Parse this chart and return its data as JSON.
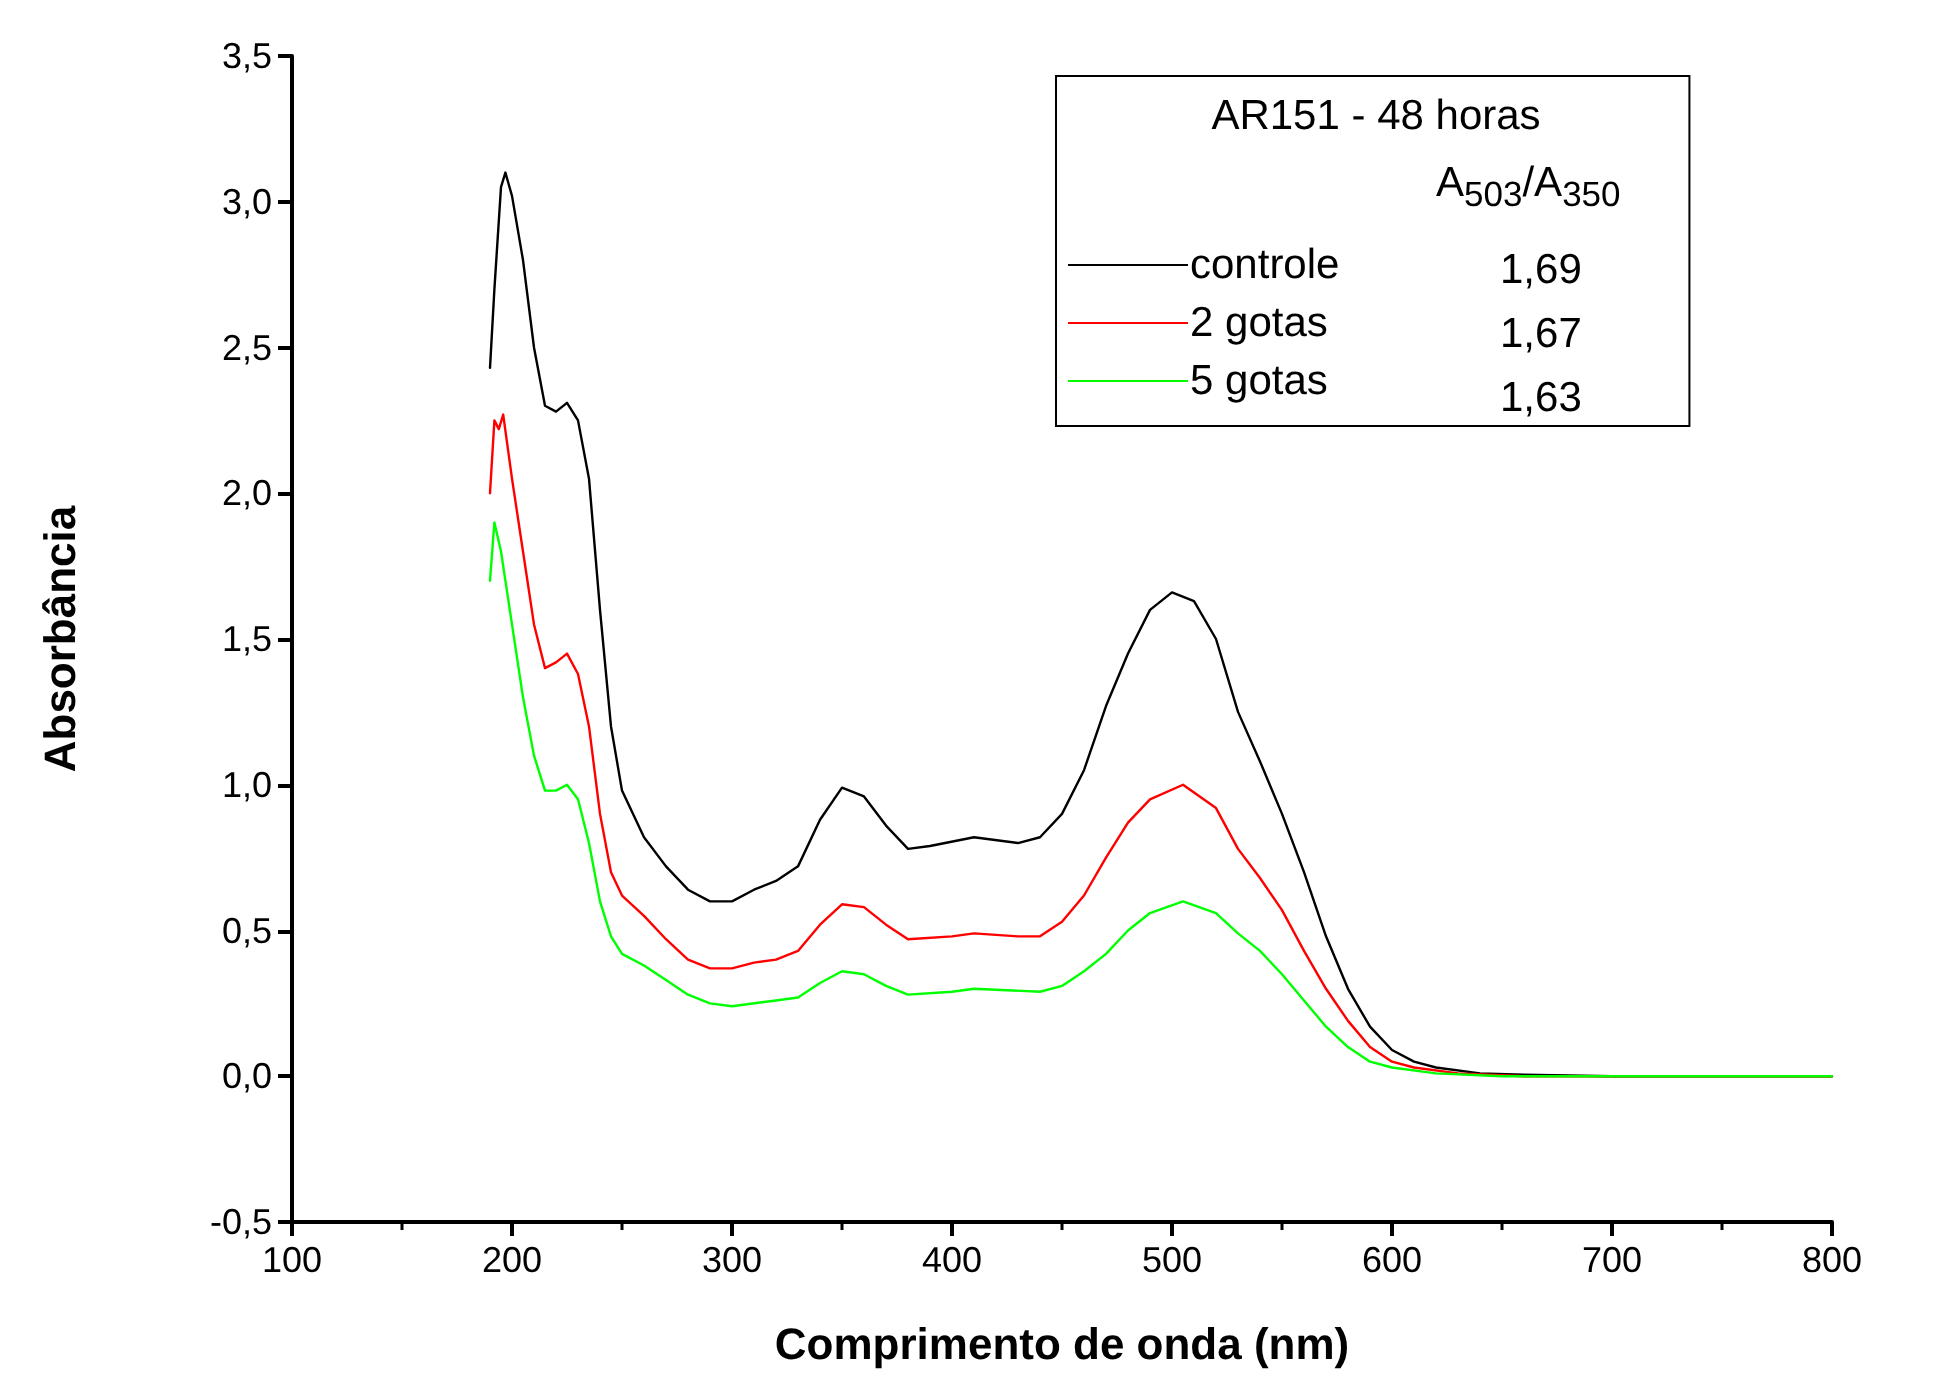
{
  "chart_data": {
    "type": "line",
    "xlabel": "Comprimento de onda (nm)",
    "ylabel": "Absorbância",
    "legend_title": "AR151 - 48 horas",
    "annotations": [
      "A$_{503}$/A$_{350}$",
      "1,69",
      "1,67",
      "1,63"
    ],
    "xlim": [
      100,
      800
    ],
    "xticks": [
      100,
      200,
      300,
      400,
      500,
      600,
      700,
      800
    ],
    "ylim": [
      -0.5,
      3.5
    ],
    "yticks": [
      {
        "value": -0.5,
        "label": "-0,5"
      },
      {
        "value": 0,
        "label": "0,0"
      },
      {
        "value": 0.5,
        "label": "0,5"
      },
      {
        "value": 1,
        "label": "1,0"
      },
      {
        "value": 1.5,
        "label": "1,5"
      },
      {
        "value": 2,
        "label": "2,0"
      },
      {
        "value": 2.5,
        "label": "2,5"
      },
      {
        "value": 3,
        "label": "3,0"
      },
      {
        "value": 3.5,
        "label": "3,5"
      }
    ],
    "grid": false,
    "legend": "top right",
    "marker": "none",
    "line_style": "solid",
    "series": [
      {
        "name": "controle",
        "color": "#000000",
        "x": [
          190,
          192,
          195,
          197,
          200,
          205,
          210,
          215,
          220,
          225,
          230,
          235,
          240,
          245,
          250,
          260,
          270,
          280,
          290,
          300,
          310,
          320,
          330,
          340,
          350,
          360,
          370,
          380,
          390,
          410,
          430,
          440,
          450,
          460,
          470,
          480,
          490,
          500,
          510,
          520,
          530,
          540,
          550,
          560,
          570,
          580,
          590,
          600,
          610,
          620,
          640,
          660,
          700,
          800
        ],
        "values": [
          2.43,
          2.7,
          3.05,
          3.1,
          3.02,
          2.8,
          2.5,
          2.3,
          2.28,
          2.31,
          2.25,
          2.05,
          1.6,
          1.2,
          0.98,
          0.82,
          0.72,
          0.64,
          0.6,
          0.6,
          0.64,
          0.67,
          0.72,
          0.88,
          0.99,
          0.96,
          0.86,
          0.78,
          0.79,
          0.82,
          0.8,
          0.82,
          0.9,
          1.05,
          1.27,
          1.45,
          1.6,
          1.66,
          1.63,
          1.5,
          1.25,
          1.08,
          0.9,
          0.7,
          0.48,
          0.3,
          0.17,
          0.09,
          0.05,
          0.03,
          0.01,
          0.005,
          0,
          0
        ]
      },
      {
        "name": "2 gotas",
        "color": "#ff0000",
        "x": [
          190,
          192,
          194,
          196,
          200,
          205,
          210,
          215,
          220,
          225,
          230,
          235,
          240,
          245,
          250,
          260,
          270,
          280,
          290,
          300,
          310,
          320,
          330,
          340,
          350,
          360,
          370,
          380,
          400,
          410,
          430,
          440,
          450,
          460,
          470,
          480,
          490,
          505,
          520,
          530,
          540,
          550,
          560,
          570,
          580,
          590,
          600,
          610,
          630,
          660,
          800
        ],
        "values": [
          2.0,
          2.25,
          2.22,
          2.27,
          2.05,
          1.8,
          1.55,
          1.4,
          1.42,
          1.45,
          1.38,
          1.2,
          0.9,
          0.7,
          0.62,
          0.55,
          0.47,
          0.4,
          0.37,
          0.37,
          0.39,
          0.4,
          0.43,
          0.52,
          0.59,
          0.58,
          0.52,
          0.47,
          0.48,
          0.49,
          0.48,
          0.48,
          0.53,
          0.62,
          0.75,
          0.87,
          0.95,
          1.0,
          0.92,
          0.78,
          0.68,
          0.57,
          0.43,
          0.3,
          0.19,
          0.1,
          0.05,
          0.03,
          0.01,
          0,
          0
        ]
      },
      {
        "name": "5 gotas",
        "color": "#00ff00",
        "x": [
          190,
          192,
          195,
          200,
          205,
          210,
          215,
          220,
          225,
          230,
          235,
          240,
          245,
          250,
          260,
          270,
          280,
          290,
          300,
          320,
          330,
          340,
          350,
          360,
          370,
          380,
          400,
          410,
          440,
          450,
          460,
          470,
          480,
          490,
          505,
          520,
          530,
          540,
          550,
          560,
          570,
          580,
          590,
          600,
          620,
          650,
          800
        ],
        "values": [
          1.7,
          1.9,
          1.8,
          1.55,
          1.3,
          1.1,
          0.98,
          0.98,
          1.0,
          0.95,
          0.8,
          0.6,
          0.48,
          0.42,
          0.38,
          0.33,
          0.28,
          0.25,
          0.24,
          0.26,
          0.27,
          0.32,
          0.36,
          0.35,
          0.31,
          0.28,
          0.29,
          0.3,
          0.29,
          0.31,
          0.36,
          0.42,
          0.5,
          0.56,
          0.6,
          0.56,
          0.49,
          0.43,
          0.35,
          0.26,
          0.17,
          0.1,
          0.05,
          0.03,
          0.01,
          0,
          0
        ]
      }
    ]
  }
}
